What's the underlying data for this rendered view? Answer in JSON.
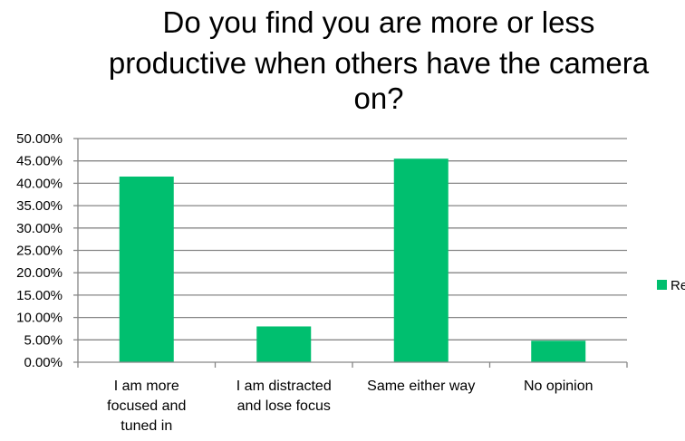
{
  "chart_data": {
    "type": "bar",
    "title": "Do you find you are more or less productive when others have the camera on?",
    "title_lines": [
      "Do you find you are more or less",
      "productive when others have the camera",
      "on?"
    ],
    "categories": [
      "I am more focused and tuned in",
      "I am distracted and lose focus",
      "Same either way",
      "No opinion"
    ],
    "category_lines": [
      [
        "I am more",
        "focused and",
        "tuned in"
      ],
      [
        "I am distracted",
        "and lose focus"
      ],
      [
        "Same either way"
      ],
      [
        "No opinion"
      ]
    ],
    "series": [
      {
        "values": [
          0.415,
          0.08,
          0.455,
          0.048
        ],
        "color": "#00BF6F"
      }
    ],
    "legend_text": "Re",
    "y_ticks": [
      "0.00%",
      "5.00%",
      "10.00%",
      "15.00%",
      "20.00%",
      "25.00%",
      "30.00%",
      "35.00%",
      "40.00%",
      "45.00%",
      "50.00%"
    ],
    "ylim": [
      0,
      0.5
    ],
    "grid": true,
    "legend_position": "right",
    "gridline_color": "#868686"
  }
}
